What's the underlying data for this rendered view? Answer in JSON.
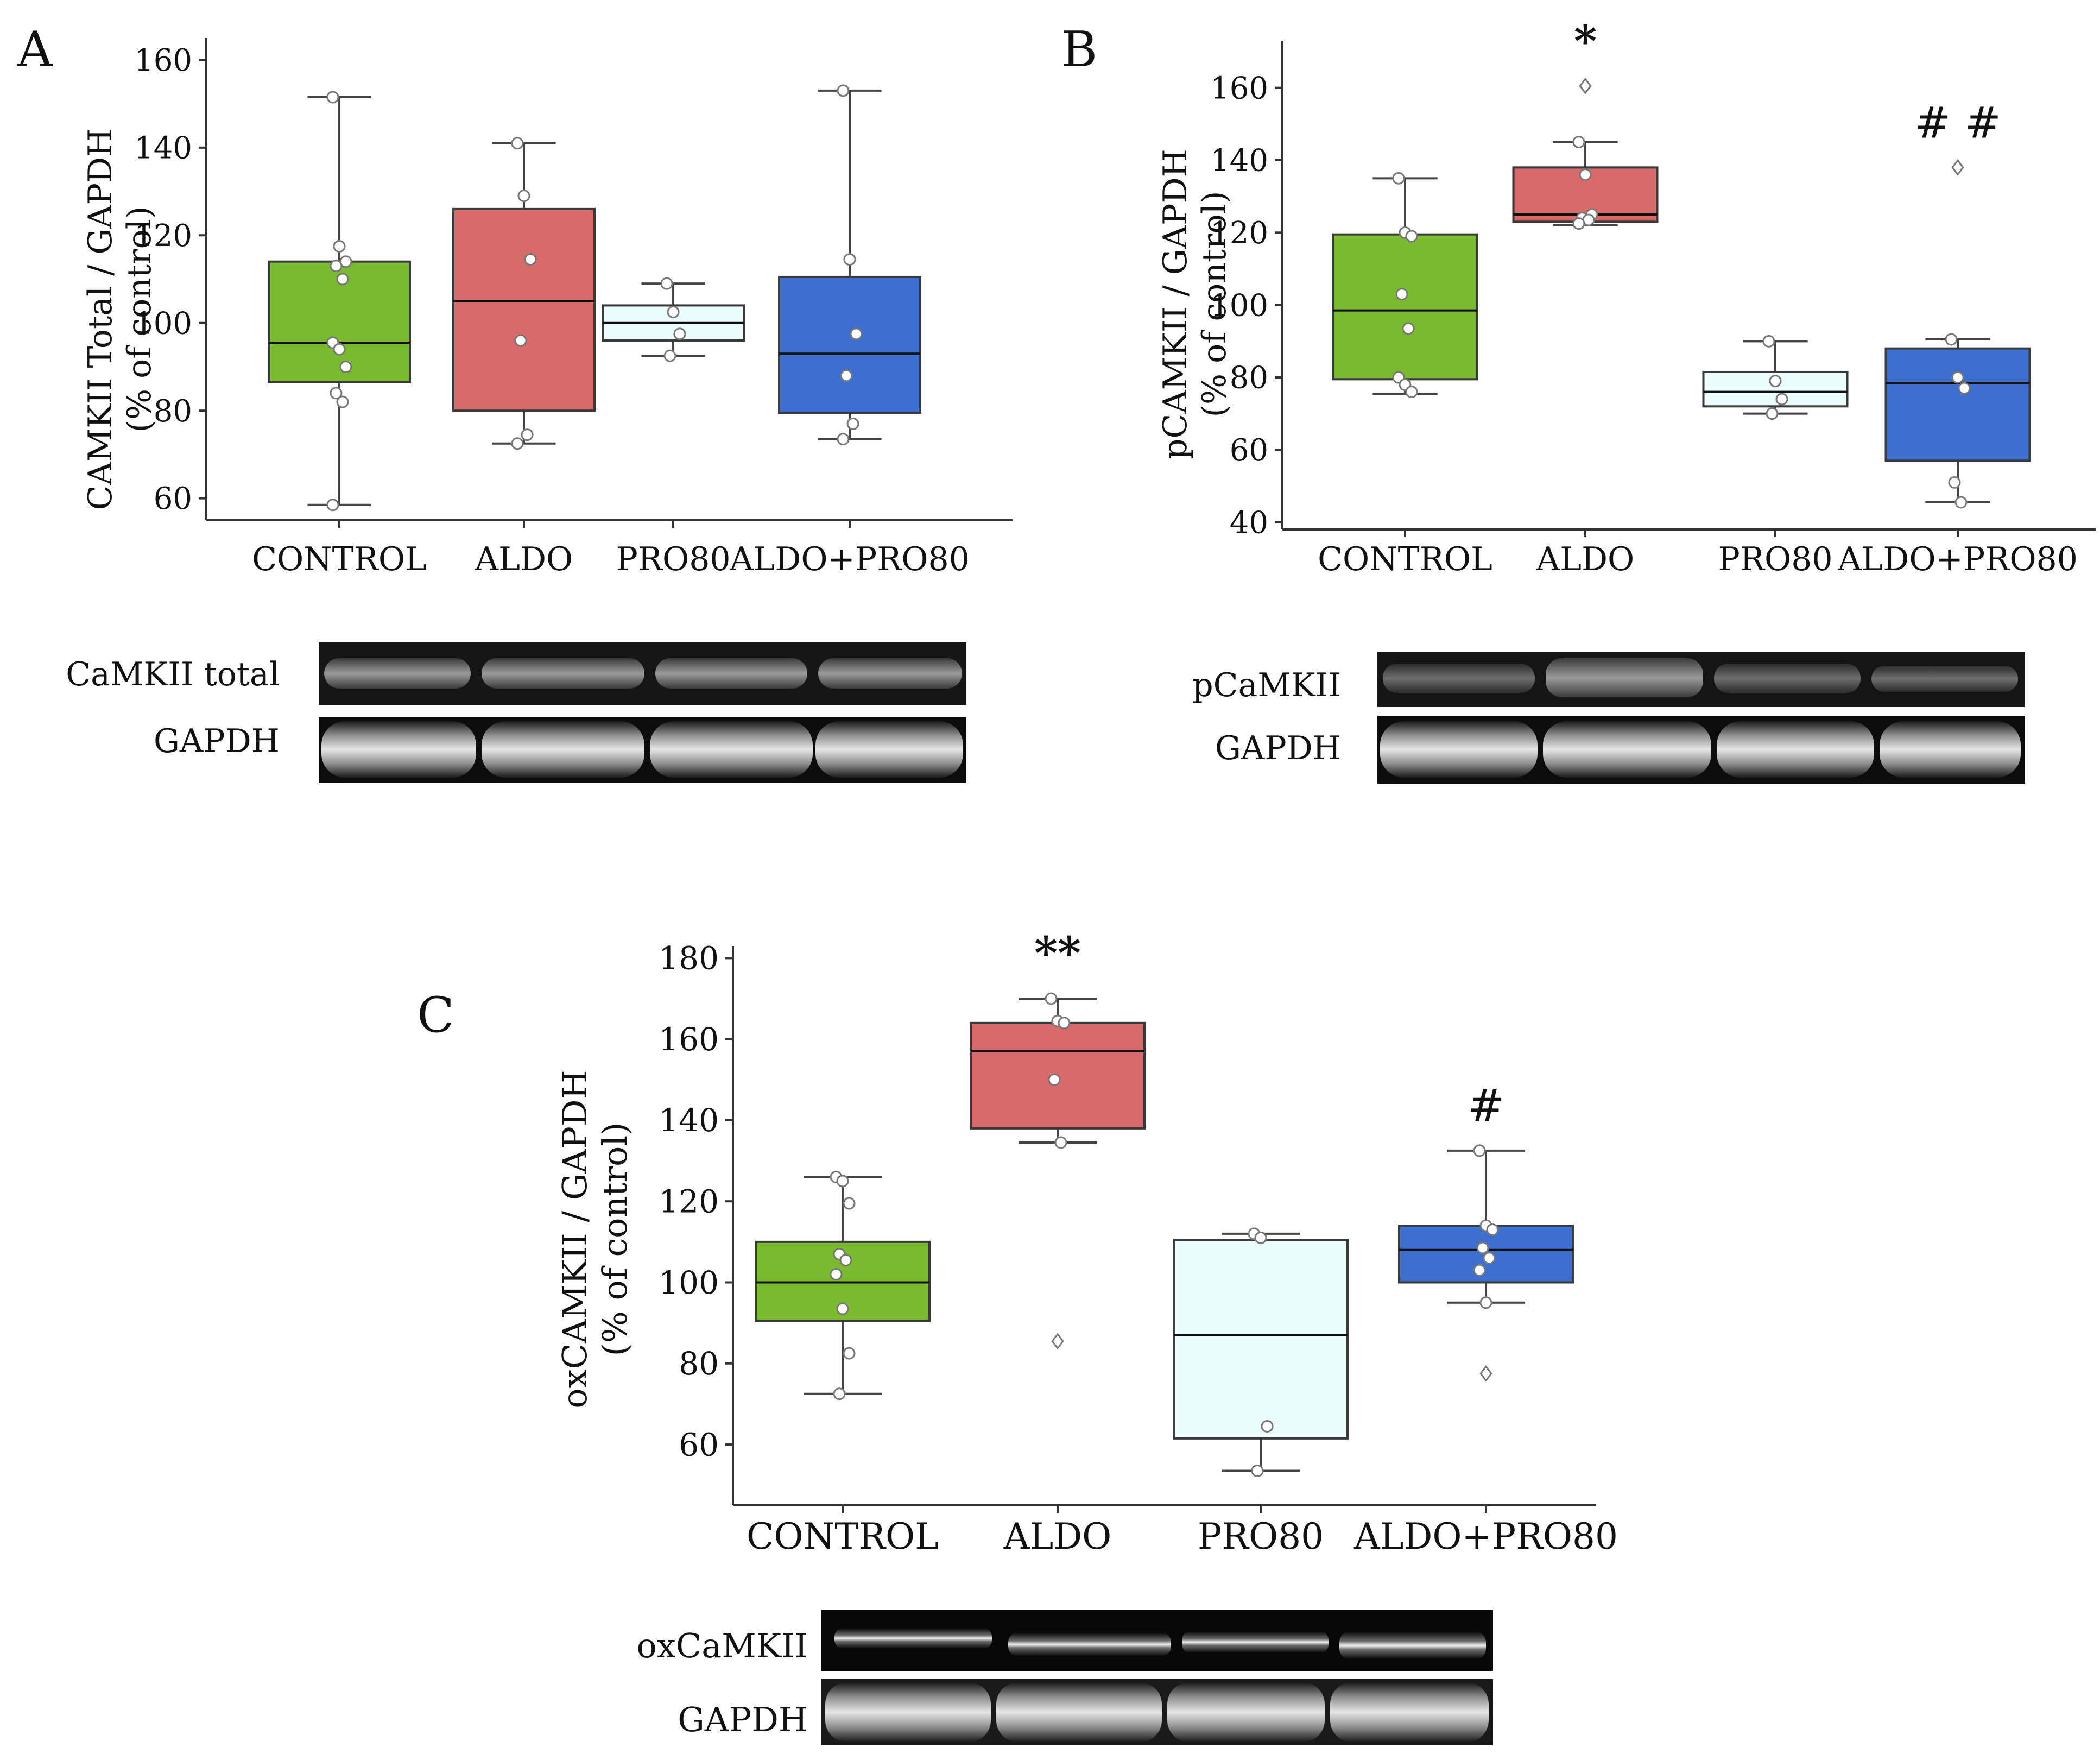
{
  "colors": {
    "CONTROL": "#7aba2e",
    "ALDO": "#d86a6b",
    "PRO80": "#eafcfc",
    "ALDO+PRO80": "#3d6fd1",
    "axis": "#333333",
    "point_fill": "#ffffff",
    "point_stroke": "#777777"
  },
  "chart_data": [
    {
      "id": "A",
      "type": "box",
      "panel_label": "A",
      "ylabel": "CAMKII Total / GAPDH",
      "ylabel2": "(% of control)",
      "ylim": [
        55,
        165
      ],
      "yticks": [
        60,
        80,
        100,
        120,
        140,
        160
      ],
      "categories": [
        "CONTROL",
        "ALDO",
        "PRO80",
        "ALDO+PRO80"
      ],
      "annotations": [
        "",
        "",
        "",
        ""
      ],
      "boxes": [
        {
          "q1": 86.5,
          "median": 95.5,
          "q3": 114,
          "whisker_low": 58.5,
          "whisker_high": 151.5,
          "points": [
            151.5,
            117.5,
            114,
            113,
            110,
            95.5,
            94,
            90,
            84,
            82,
            58.5
          ],
          "outliers": []
        },
        {
          "q1": 80,
          "median": 105,
          "q3": 126,
          "whisker_low": 72.5,
          "whisker_high": 141,
          "points": [
            141,
            129,
            114.5,
            96,
            74.5,
            72.5
          ],
          "outliers": []
        },
        {
          "q1": 96,
          "median": 100,
          "q3": 104,
          "whisker_low": 92.5,
          "whisker_high": 109,
          "points": [
            109,
            102.5,
            97.5,
            92.5
          ],
          "outliers": []
        },
        {
          "q1": 79.5,
          "median": 93,
          "q3": 110.5,
          "whisker_low": 73.5,
          "whisker_high": 153,
          "points": [
            153,
            114.5,
            97.5,
            88,
            77,
            73.5
          ],
          "outliers": []
        }
      ],
      "blot": {
        "labels": [
          "CaMKII total",
          "GAPDH"
        ]
      }
    },
    {
      "id": "B",
      "type": "box",
      "panel_label": "B",
      "ylabel": "pCAMKII / GAPDH",
      "ylabel2": "(% of control)",
      "ylim": [
        38,
        173
      ],
      "yticks": [
        40,
        60,
        80,
        100,
        120,
        140,
        160
      ],
      "categories": [
        "CONTROL",
        "ALDO",
        "PRO80",
        "ALDO+PRO80"
      ],
      "annotations": [
        "",
        "*",
        "",
        "# #"
      ],
      "boxes": [
        {
          "q1": 79.5,
          "median": 98.5,
          "q3": 119.5,
          "whisker_low": 75.5,
          "whisker_high": 135,
          "points": [
            135,
            120,
            119,
            103,
            93.5,
            80,
            78,
            76
          ],
          "outliers": []
        },
        {
          "q1": 123,
          "median": 125,
          "q3": 138,
          "whisker_low": 122,
          "whisker_high": 145,
          "points": [
            145,
            136,
            125,
            124,
            123.5,
            122.5
          ],
          "outliers": [
            160.5
          ]
        },
        {
          "q1": 72,
          "median": 76,
          "q3": 81.5,
          "whisker_low": 70,
          "whisker_high": 90,
          "points": [
            90,
            79,
            74,
            70
          ],
          "outliers": []
        },
        {
          "q1": 57,
          "median": 78.5,
          "q3": 88,
          "whisker_low": 45.5,
          "whisker_high": 90.5,
          "points": [
            90.5,
            80,
            77,
            51,
            45.5
          ],
          "outliers": [
            138
          ]
        }
      ],
      "blot": {
        "labels": [
          "pCaMKII",
          "GAPDH"
        ]
      }
    },
    {
      "id": "C",
      "type": "box",
      "panel_label": "C",
      "ylabel": "oxCAMKII / GAPDH",
      "ylabel2": "(% of control)",
      "ylim": [
        45,
        183
      ],
      "yticks": [
        60,
        80,
        100,
        120,
        140,
        160,
        180
      ],
      "categories": [
        "CONTROL",
        "ALDO",
        "PRO80",
        "ALDO+PRO80"
      ],
      "annotations": [
        "",
        "**",
        "",
        "#"
      ],
      "boxes": [
        {
          "q1": 90.5,
          "median": 100,
          "q3": 110,
          "whisker_low": 72.5,
          "whisker_high": 126,
          "points": [
            126,
            125,
            119.5,
            107,
            105.5,
            102,
            93.5,
            82.5,
            72.5
          ],
          "outliers": []
        },
        {
          "q1": 138,
          "median": 157,
          "q3": 164,
          "whisker_low": 134.5,
          "whisker_high": 170,
          "points": [
            170,
            164.5,
            164,
            150,
            134.5
          ],
          "outliers": [
            85.5
          ]
        },
        {
          "q1": 61.5,
          "median": 87,
          "q3": 110.5,
          "whisker_low": 53.5,
          "whisker_high": 112,
          "points": [
            112,
            111,
            64.5,
            53.5
          ],
          "outliers": []
        },
        {
          "q1": 100,
          "median": 108,
          "q3": 114,
          "whisker_low": 95,
          "whisker_high": 132.5,
          "points": [
            132.5,
            114,
            113,
            108.5,
            106,
            103,
            95
          ],
          "outliers": [
            77.5
          ]
        }
      ],
      "blot": {
        "labels": [
          "oxCaMKII",
          "GAPDH"
        ]
      }
    }
  ]
}
